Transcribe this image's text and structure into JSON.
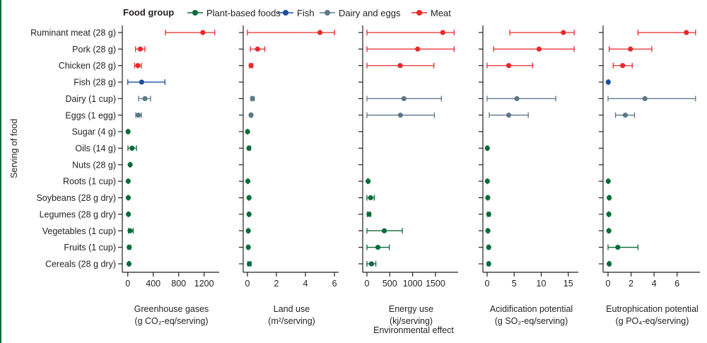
{
  "chart_data": {
    "type": "scatter",
    "ylabel": "Serving of food",
    "xlabel": "Environmental effect",
    "legend": {
      "title": "Food group",
      "placement": "top",
      "entries": [
        {
          "name": "Plant-based foods",
          "color": "#0a6b3a"
        },
        {
          "name": "Fish",
          "color": "#1b4f9c"
        },
        {
          "name": "Dairy and eggs",
          "color": "#5b7886"
        },
        {
          "name": "Meat",
          "color": "#e8292b"
        }
      ]
    },
    "categories": [
      "Ruminant meat (28 g)",
      "Pork (28 g)",
      "Chicken (28 g)",
      "Fish (28 g)",
      "Dairy (1 cup)",
      "Eggs (1 egg)",
      "Sugar (4 g)",
      "Oils (14 g)",
      "Nuts (28 g)",
      "Roots (1 cup)",
      "Soybeans (28 g dry)",
      "Legumes (28 g dry)",
      "Vegetables (1 cup)",
      "Fruits (1 cup)",
      "Cereals (28 g dry)"
    ],
    "category_group": [
      3,
      3,
      3,
      1,
      2,
      2,
      0,
      0,
      0,
      0,
      0,
      0,
      0,
      0,
      0
    ],
    "value_format": "[low, median, high]",
    "panels": [
      {
        "xlabel": "Greenhouse gases",
        "xunit": "(g CO₂-eq/serving)",
        "xlim": [
          -86,
          1437
        ],
        "xticks": [
          0,
          400,
          800,
          1200
        ],
        "values": [
          [
            592,
            1180,
            1367
          ],
          [
            122,
            196,
            270
          ],
          [
            107,
            159,
            214
          ],
          [
            0,
            218,
            585
          ],
          [
            170,
            270,
            359
          ],
          [
            126,
            167,
            214
          ],
          [
            2,
            5,
            8
          ],
          [
            3,
            67,
            137
          ],
          [
            30,
            37,
            45
          ],
          [
            3,
            6,
            10
          ],
          [
            4,
            8,
            12
          ],
          [
            5,
            10,
            15
          ],
          [
            10,
            36,
            85
          ],
          [
            5,
            22,
            45
          ],
          [
            10,
            19,
            30
          ]
        ]
      },
      {
        "xlabel": "Land use",
        "xunit": "(m²/serving)",
        "xlim": [
          -0.29,
          6.29
        ],
        "xticks": [
          0,
          2,
          4,
          6
        ],
        "values": [
          [
            0,
            5.0,
            6.0
          ],
          [
            0.2,
            0.7,
            1.2
          ],
          [
            0.15,
            0.25,
            0.35
          ],
          null,
          [
            0.25,
            0.35,
            0.45
          ],
          [
            0.18,
            0.25,
            0.32
          ],
          [
            0,
            0.01,
            0.02
          ],
          [
            0.05,
            0.1,
            0.2
          ],
          null,
          [
            0.0,
            0.03,
            0.06
          ],
          [
            0.07,
            0.11,
            0.15
          ],
          [
            0.07,
            0.11,
            0.15
          ],
          [
            0.02,
            0.06,
            0.1
          ],
          [
            0.02,
            0.06,
            0.1
          ],
          [
            0.03,
            0.13,
            0.25
          ]
        ]
      },
      {
        "xlabel": "Energy use",
        "xunit": "(kj/serving)",
        "xlim": [
          -93,
          1997
        ],
        "xticks": [
          0,
          500,
          1000,
          1500
        ],
        "values": [
          [
            0,
            1660,
            1910
          ],
          [
            0,
            1110,
            1910
          ],
          [
            0,
            728,
            1466
          ],
          null,
          [
            0,
            810,
            1630
          ],
          [
            0,
            733,
            1475
          ],
          null,
          null,
          null,
          [
            10,
            25,
            40
          ],
          [
            0,
            80,
            160
          ],
          [
            10,
            45,
            80
          ],
          [
            0,
            380,
            775
          ],
          [
            0,
            240,
            490
          ],
          [
            0,
            100,
            195
          ]
        ]
      },
      {
        "xlabel": "Acidification potential",
        "xunit": "(g SO₂-eq/serving)",
        "xlim": [
          -0.78,
          16.86
        ],
        "xticks": [
          0,
          5,
          10,
          15
        ],
        "values": [
          [
            4.2,
            14.1,
            16.1
          ],
          [
            1.2,
            9.6,
            16.1
          ],
          [
            0,
            4.0,
            8.4
          ],
          null,
          [
            0,
            5.5,
            12.7
          ],
          [
            0.4,
            4.0,
            7.6
          ],
          null,
          [
            0.0,
            0.05,
            0.15
          ],
          null,
          [
            0.03,
            0.05,
            0.08
          ],
          [
            0.05,
            0.12,
            0.2
          ],
          [
            0.1,
            0.3,
            0.5
          ],
          [
            0.1,
            0.15,
            0.22
          ],
          [
            0.15,
            0.3,
            0.45
          ],
          [
            0.15,
            0.3,
            0.45
          ]
        ]
      },
      {
        "xlabel": "Eutrophication potential",
        "xunit": "(g PO₄-eq/serving)",
        "xlim": [
          -0.43,
          7.98
        ],
        "xticks": [
          0,
          2,
          4,
          6
        ],
        "values": [
          [
            2.6,
            6.8,
            7.6
          ],
          [
            0.1,
            1.95,
            3.8
          ],
          [
            0.45,
            1.27,
            2.1
          ],
          [
            0,
            0.02,
            0.05
          ],
          [
            0,
            3.2,
            7.6
          ],
          [
            0.65,
            1.5,
            2.3
          ],
          null,
          null,
          null,
          [
            0.0,
            0.02,
            0.04
          ],
          [
            0.05,
            0.1,
            0.17
          ],
          [
            0.03,
            0.07,
            0.12
          ],
          [
            0.03,
            0.07,
            0.12
          ],
          [
            0,
            0.85,
            2.6
          ],
          [
            0.05,
            0.1,
            0.17
          ]
        ]
      }
    ]
  }
}
